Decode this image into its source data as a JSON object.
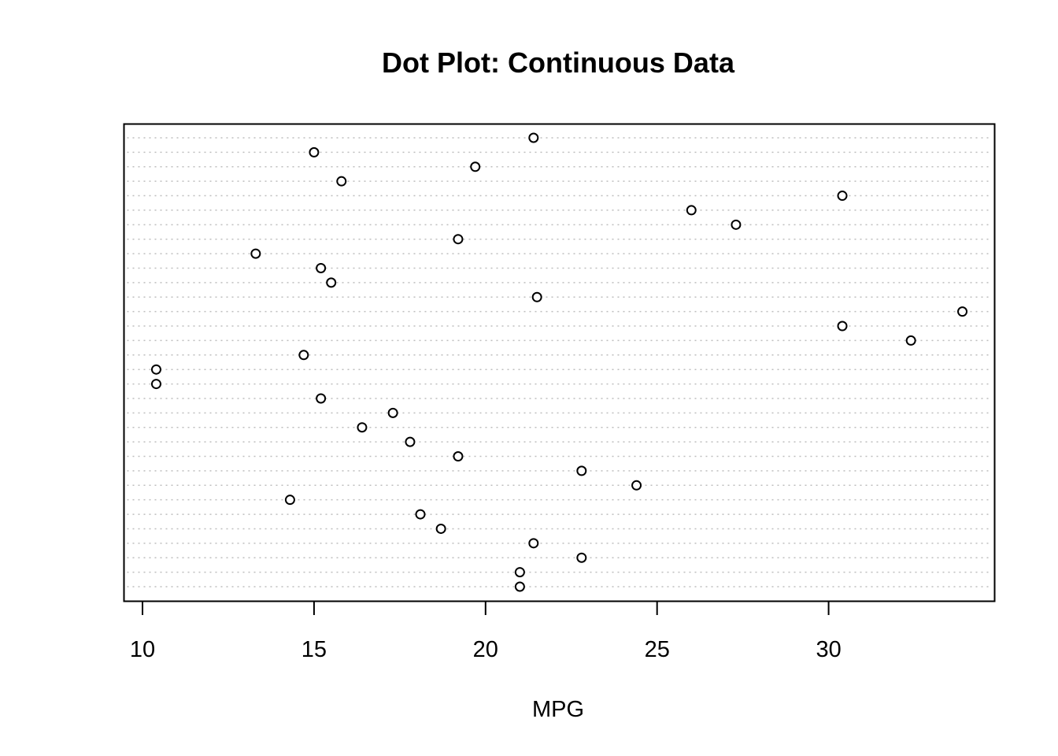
{
  "chart_data": {
    "type": "scatter",
    "title": "Dot Plot: Continuous Data",
    "xlabel": "MPG",
    "ylabel": "",
    "xlim": [
      9.46,
      34.84
    ],
    "x_ticks": [
      10,
      15,
      20,
      25,
      30
    ],
    "x_tick_labels": [
      "10",
      "15",
      "20",
      "25",
      "30"
    ],
    "grid": "dotted horizontal lines, one per observation",
    "marker": "open circle",
    "point_color": "#000000",
    "grid_color": "#bebebe",
    "values_bottom_to_top": [
      21.0,
      21.0,
      22.8,
      21.4,
      18.7,
      18.1,
      14.3,
      24.4,
      22.8,
      19.2,
      17.8,
      16.4,
      17.3,
      15.2,
      10.4,
      10.4,
      14.7,
      32.4,
      30.4,
      33.9,
      21.5,
      15.5,
      15.2,
      13.3,
      19.2,
      27.3,
      26.0,
      30.4,
      15.8,
      19.7,
      15.0,
      21.4
    ]
  }
}
